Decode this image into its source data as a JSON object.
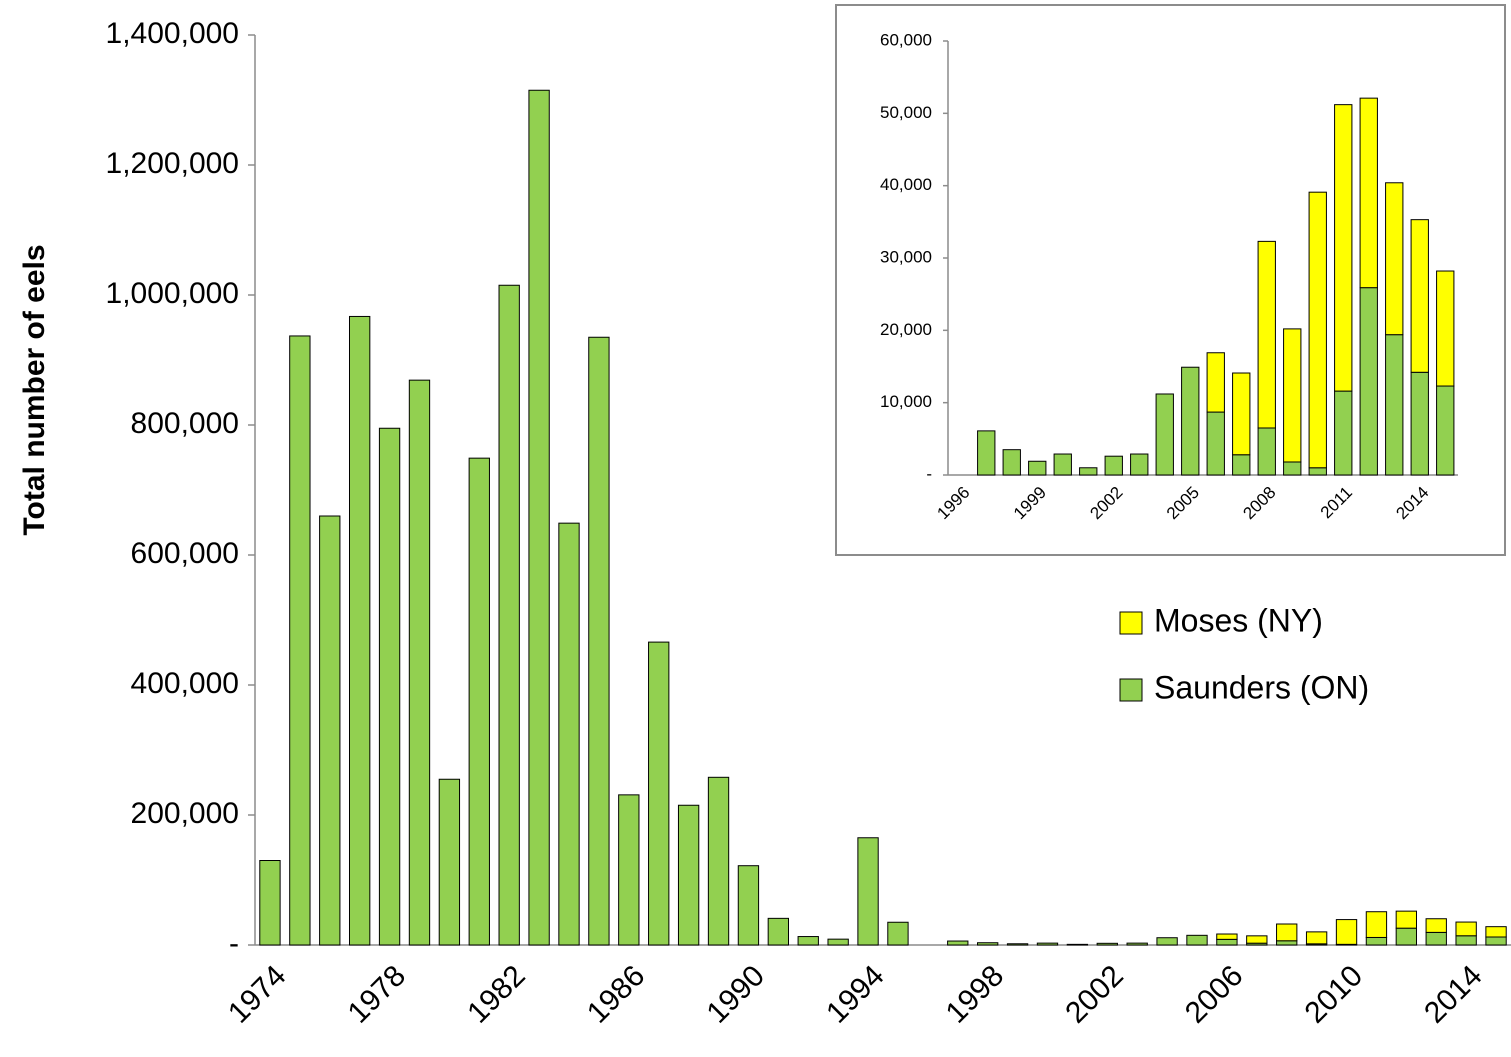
{
  "chart_data": [
    {
      "type": "bar",
      "stacked": true,
      "y_label": "Total number of eels",
      "categories": [
        "1974",
        null,
        null,
        null,
        "1978",
        null,
        null,
        null,
        "1982",
        null,
        null,
        null,
        "1986",
        null,
        null,
        null,
        "1990",
        null,
        null,
        null,
        "1994",
        null,
        null,
        null,
        "1998",
        null,
        null,
        null,
        "2002",
        null,
        null,
        null,
        "2006",
        null,
        null,
        null,
        "2010",
        null,
        null,
        null,
        "2014",
        null
      ],
      "series": [
        {
          "name": "Saunders (ON)",
          "color": "#92d050",
          "values": [
            130000,
            937000,
            660000,
            967000,
            795000,
            869000,
            255000,
            749000,
            1015000,
            1315000,
            649000,
            935000,
            231000,
            466000,
            215000,
            258000,
            122000,
            41000,
            13000,
            9000,
            165000,
            35000,
            null,
            6100,
            3500,
            1900,
            2900,
            1000,
            2600,
            2900,
            11200,
            14900,
            8700,
            2800,
            6500,
            1800,
            1000,
            11600,
            25900,
            19400,
            14200,
            12300
          ]
        },
        {
          "name": "Moses (NY)",
          "color": "#ffff00",
          "values": [
            null,
            null,
            null,
            null,
            null,
            null,
            null,
            null,
            null,
            null,
            null,
            null,
            null,
            null,
            null,
            null,
            null,
            null,
            null,
            null,
            null,
            null,
            null,
            null,
            null,
            null,
            null,
            null,
            null,
            null,
            null,
            null,
            8200,
            11300,
            25800,
            18400,
            38100,
            39600,
            26200,
            21000,
            21100,
            15900
          ]
        }
      ],
      "ylim": [
        0,
        1400000
      ],
      "yticks": [
        {
          "value": 0,
          "label": "-"
        },
        {
          "value": 200000,
          "label": "200,000"
        },
        {
          "value": 400000,
          "label": "400,000"
        },
        {
          "value": 600000,
          "label": "600,000"
        },
        {
          "value": 800000,
          "label": "800,000"
        },
        {
          "value": 1000000,
          "label": "1,000,000"
        },
        {
          "value": 1200000,
          "label": "1,200,000"
        },
        {
          "value": 1400000,
          "label": "1,400,000"
        }
      ],
      "grid": false,
      "legend": "right"
    },
    {
      "type": "bar",
      "stacked": true,
      "categories": [
        "1996",
        null,
        null,
        "1999",
        null,
        null,
        "2002",
        null,
        null,
        "2005",
        null,
        null,
        "2008",
        null,
        null,
        "2011",
        null,
        null,
        "2014",
        null
      ],
      "series": [
        {
          "color": "#92d050",
          "values": [
            null,
            6100,
            3500,
            1900,
            2900,
            1000,
            2600,
            2900,
            11200,
            14900,
            8700,
            2800,
            6500,
            1800,
            1000,
            11600,
            25900,
            19400,
            14200,
            12300
          ]
        },
        {
          "color": "#ffff00",
          "values": [
            null,
            null,
            null,
            null,
            null,
            null,
            null,
            null,
            null,
            null,
            8200,
            11300,
            25800,
            18400,
            38100,
            39600,
            26200,
            21000,
            21100,
            15900
          ]
        }
      ],
      "ylim": [
        0,
        60000
      ],
      "yticks": [
        {
          "value": 0,
          "label": "-"
        },
        {
          "value": 10000,
          "label": "10,000"
        },
        {
          "value": 20000,
          "label": "20,000"
        },
        {
          "value": 30000,
          "label": "30,000"
        },
        {
          "value": 40000,
          "label": "40,000"
        },
        {
          "value": 50000,
          "label": "50,000"
        },
        {
          "value": 60000,
          "label": "60,000"
        }
      ],
      "grid": false
    }
  ]
}
